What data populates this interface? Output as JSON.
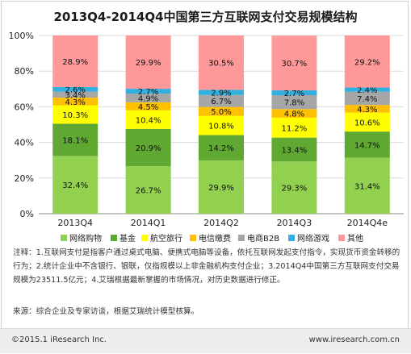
{
  "chart_data": {
    "type": "bar",
    "stacked": true,
    "title": "2013Q4-2014Q4中国第三方互联网支付交易规模结构",
    "categories": [
      "2013Q4",
      "2014Q1",
      "2014Q2",
      "2014Q3",
      "2014Q4e"
    ],
    "ylim": [
      0,
      100
    ],
    "y_ticks": [
      "0%",
      "20%",
      "40%",
      "60%",
      "80%",
      "100%"
    ],
    "series": [
      {
        "name": "网络购物",
        "color": "#92d050",
        "values": [
          32.4,
          26.7,
          29.9,
          29.3,
          31.4
        ]
      },
      {
        "name": "基金",
        "color": "#5fa832",
        "values": [
          18.1,
          20.9,
          14.2,
          13.4,
          14.7
        ]
      },
      {
        "name": "航空旅行",
        "color": "#ffff00",
        "values": [
          10.3,
          10.4,
          10.8,
          11.2,
          10.6
        ]
      },
      {
        "name": "电信缴费",
        "color": "#ffc000",
        "values": [
          4.3,
          4.5,
          5.0,
          4.8,
          4.3
        ]
      },
      {
        "name": "电商B2B",
        "color": "#a6a6a6",
        "values": [
          3.4,
          4.9,
          6.7,
          7.8,
          7.4
        ]
      },
      {
        "name": "网络游戏",
        "color": "#31b0e0",
        "values": [
          2.6,
          2.7,
          2.9,
          2.7,
          2.4
        ]
      },
      {
        "name": "其他",
        "color": "#ff9999",
        "values": [
          28.9,
          29.9,
          30.5,
          30.7,
          29.2
        ]
      }
    ],
    "grid": true,
    "legend_position": "bottom"
  },
  "notes": "注释：1.互联网支付是指客户通过桌式电脑、便携式电脑等设备，依托互联网发起支付指令，实现货币资金转移的行为；2.统计企业中不含银行、银联，仅指规模以上非金融机构支付企业；3.2014Q4中国第三方互联网支付交易规模为23511.5亿元；4.艾瑞根据最新掌握的市场情况，对历史数据进行修正。",
  "source": "来源：综合企业及专家访谈，根据艾瑞统计模型核算。",
  "footer": {
    "copyright": "©2015.1 iResearch Inc.",
    "website": "www.iresearch.com.cn"
  }
}
